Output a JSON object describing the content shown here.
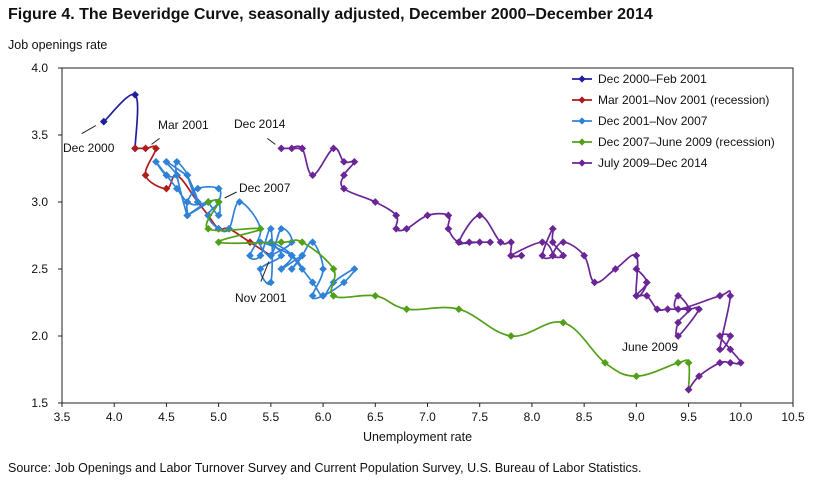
{
  "figure": {
    "title": "Figure 4. The Beveridge Curve, seasonally adjusted, December 2000–December 2014",
    "source": "Source: Job Openings and Labor Turnover Survey and Current Population Survey, U.S. Bureau of Labor Statistics."
  },
  "chart_data": {
    "type": "line",
    "xlabel": "Unemployment rate",
    "ylabel": "Job openings rate",
    "xlim": [
      3.5,
      10.5
    ],
    "ylim": [
      1.5,
      4.0
    ],
    "xticks": [
      "3.5",
      "4.0",
      "4.5",
      "5.0",
      "5.5",
      "6.0",
      "6.5",
      "7.0",
      "7.5",
      "8.0",
      "8.5",
      "9.0",
      "9.5",
      "10.0",
      "10.5"
    ],
    "yticks": [
      "1.5",
      "2.0",
      "2.5",
      "3.0",
      "3.5",
      "4.0"
    ],
    "grid": false,
    "legend_position": "top-right",
    "series": [
      {
        "name": "Dec 2000–Feb 2001",
        "color": "#1f1f9e",
        "points": [
          [
            3.9,
            3.6
          ],
          [
            4.2,
            3.8
          ],
          [
            4.2,
            3.4
          ]
        ]
      },
      {
        "name": "Mar 2001–Nov 2001  (recession)",
        "color": "#b01c1c",
        "points": [
          [
            4.2,
            3.4
          ],
          [
            4.3,
            3.4
          ],
          [
            4.4,
            3.4
          ],
          [
            4.3,
            3.2
          ],
          [
            4.5,
            3.1
          ],
          [
            4.6,
            3.2
          ],
          [
            4.8,
            3.0
          ],
          [
            4.9,
            2.9
          ],
          [
            5.0,
            2.8
          ],
          [
            5.1,
            2.8
          ],
          [
            5.3,
            2.7
          ],
          [
            5.5,
            2.6
          ]
        ]
      },
      {
        "name": "Dec 2001–Nov 2007",
        "color": "#2f82d8",
        "points": [
          [
            5.5,
            2.6
          ],
          [
            5.7,
            2.7
          ],
          [
            5.6,
            2.8
          ],
          [
            5.5,
            2.6
          ],
          [
            5.4,
            2.7
          ],
          [
            5.7,
            2.6
          ],
          [
            5.8,
            2.5
          ],
          [
            5.7,
            2.6
          ],
          [
            5.9,
            2.4
          ],
          [
            6.0,
            2.3
          ],
          [
            6.1,
            2.4
          ],
          [
            6.3,
            2.5
          ],
          [
            6.2,
            2.4
          ],
          [
            6.0,
            2.3
          ],
          [
            5.9,
            2.3
          ],
          [
            6.0,
            2.5
          ],
          [
            5.9,
            2.7
          ],
          [
            5.8,
            2.6
          ],
          [
            5.7,
            2.5
          ],
          [
            5.8,
            2.6
          ],
          [
            5.6,
            2.5
          ],
          [
            5.7,
            2.6
          ],
          [
            5.5,
            2.7
          ],
          [
            5.6,
            2.6
          ],
          [
            5.4,
            2.5
          ],
          [
            5.5,
            2.4
          ],
          [
            5.5,
            2.8
          ],
          [
            5.4,
            2.6
          ],
          [
            5.3,
            2.6
          ],
          [
            5.4,
            2.8
          ],
          [
            5.2,
            3.0
          ],
          [
            5.1,
            2.8
          ],
          [
            5.0,
            2.8
          ],
          [
            4.9,
            2.9
          ],
          [
            5.0,
            3.0
          ],
          [
            5.0,
            3.1
          ],
          [
            4.8,
            3.1
          ],
          [
            4.7,
            3.0
          ],
          [
            4.7,
            2.9
          ],
          [
            4.6,
            3.2
          ],
          [
            4.6,
            3.3
          ],
          [
            4.7,
            3.2
          ],
          [
            4.5,
            3.3
          ],
          [
            4.6,
            3.2
          ],
          [
            4.5,
            3.2
          ],
          [
            4.4,
            3.3
          ],
          [
            4.5,
            3.2
          ],
          [
            4.6,
            3.1
          ],
          [
            4.7,
            3.0
          ],
          [
            4.8,
            3.0
          ],
          [
            4.7,
            3.2
          ],
          [
            4.8,
            3.0
          ],
          [
            4.9,
            3.0
          ],
          [
            4.7,
            2.9
          ],
          [
            4.9,
            3.0
          ],
          [
            5.0,
            3.0
          ],
          [
            5.0,
            2.9
          ],
          [
            4.9,
            3.0
          ]
        ]
      },
      {
        "name": "Dec 2007–June 2009  (recession)",
        "color": "#52a018",
        "points": [
          [
            4.9,
            3.0
          ],
          [
            5.0,
            3.0
          ],
          [
            4.9,
            2.8
          ],
          [
            5.4,
            2.8
          ],
          [
            5.0,
            2.7
          ],
          [
            5.6,
            2.7
          ],
          [
            5.8,
            2.7
          ],
          [
            6.1,
            2.5
          ],
          [
            6.1,
            2.3
          ],
          [
            6.5,
            2.3
          ],
          [
            6.8,
            2.2
          ],
          [
            7.3,
            2.2
          ],
          [
            7.8,
            2.0
          ],
          [
            8.3,
            2.1
          ],
          [
            8.7,
            1.8
          ],
          [
            9.0,
            1.7
          ],
          [
            9.4,
            1.8
          ],
          [
            9.5,
            1.8
          ],
          [
            9.5,
            1.6
          ]
        ]
      },
      {
        "name": "July 2009–Dec 2014",
        "color": "#6a2597",
        "points": [
          [
            9.5,
            1.6
          ],
          [
            9.6,
            1.7
          ],
          [
            9.8,
            1.8
          ],
          [
            9.9,
            1.8
          ],
          [
            10.0,
            1.8
          ],
          [
            9.9,
            1.9
          ],
          [
            9.8,
            2.0
          ],
          [
            9.9,
            2.0
          ],
          [
            9.8,
            1.9
          ],
          [
            9.9,
            2.3
          ],
          [
            9.8,
            2.3
          ],
          [
            9.4,
            2.2
          ],
          [
            9.4,
            2.3
          ],
          [
            9.5,
            2.2
          ],
          [
            9.4,
            2.1
          ],
          [
            9.4,
            2.0
          ],
          [
            9.6,
            2.2
          ],
          [
            9.5,
            2.2
          ],
          [
            9.3,
            2.2
          ],
          [
            9.2,
            2.2
          ],
          [
            9.1,
            2.3
          ],
          [
            9.0,
            2.3
          ],
          [
            9.1,
            2.4
          ],
          [
            9.0,
            2.5
          ],
          [
            9.1,
            2.4
          ],
          [
            9.0,
            2.3
          ],
          [
            9.0,
            2.6
          ],
          [
            8.8,
            2.5
          ],
          [
            8.6,
            2.4
          ],
          [
            8.5,
            2.6
          ],
          [
            8.3,
            2.7
          ],
          [
            8.2,
            2.6
          ],
          [
            8.3,
            2.6
          ],
          [
            8.2,
            2.7
          ],
          [
            8.2,
            2.8
          ],
          [
            8.1,
            2.6
          ],
          [
            8.2,
            2.6
          ],
          [
            8.1,
            2.7
          ],
          [
            7.8,
            2.6
          ],
          [
            7.9,
            2.6
          ],
          [
            7.8,
            2.6
          ],
          [
            7.8,
            2.7
          ],
          [
            7.7,
            2.7
          ],
          [
            7.5,
            2.9
          ],
          [
            7.3,
            2.7
          ],
          [
            7.4,
            2.7
          ],
          [
            7.6,
            2.7
          ],
          [
            7.5,
            2.7
          ],
          [
            7.3,
            2.7
          ],
          [
            7.2,
            2.8
          ],
          [
            7.2,
            2.9
          ],
          [
            7.0,
            2.9
          ],
          [
            6.8,
            2.8
          ],
          [
            6.7,
            2.8
          ],
          [
            6.7,
            2.9
          ],
          [
            6.5,
            3.0
          ],
          [
            6.2,
            3.1
          ],
          [
            6.2,
            3.2
          ],
          [
            6.3,
            3.3
          ],
          [
            6.2,
            3.3
          ],
          [
            6.1,
            3.4
          ],
          [
            5.9,
            3.2
          ],
          [
            5.8,
            3.4
          ],
          [
            5.7,
            3.4
          ],
          [
            5.8,
            3.4
          ],
          [
            5.6,
            3.4
          ]
        ]
      }
    ],
    "annotations": [
      {
        "text": "Dec 2000",
        "x": 3.9,
        "y": 3.6
      },
      {
        "text": "Mar 2001",
        "x": 4.3,
        "y": 3.4
      },
      {
        "text": "Dec 2014",
        "x": 5.6,
        "y": 3.4
      },
      {
        "text": "Dec 2007",
        "x": 5.0,
        "y": 3.0
      },
      {
        "text": "Nov 2001",
        "x": 5.5,
        "y": 2.6
      },
      {
        "text": "June 2009",
        "x": 9.5,
        "y": 1.8
      }
    ]
  }
}
